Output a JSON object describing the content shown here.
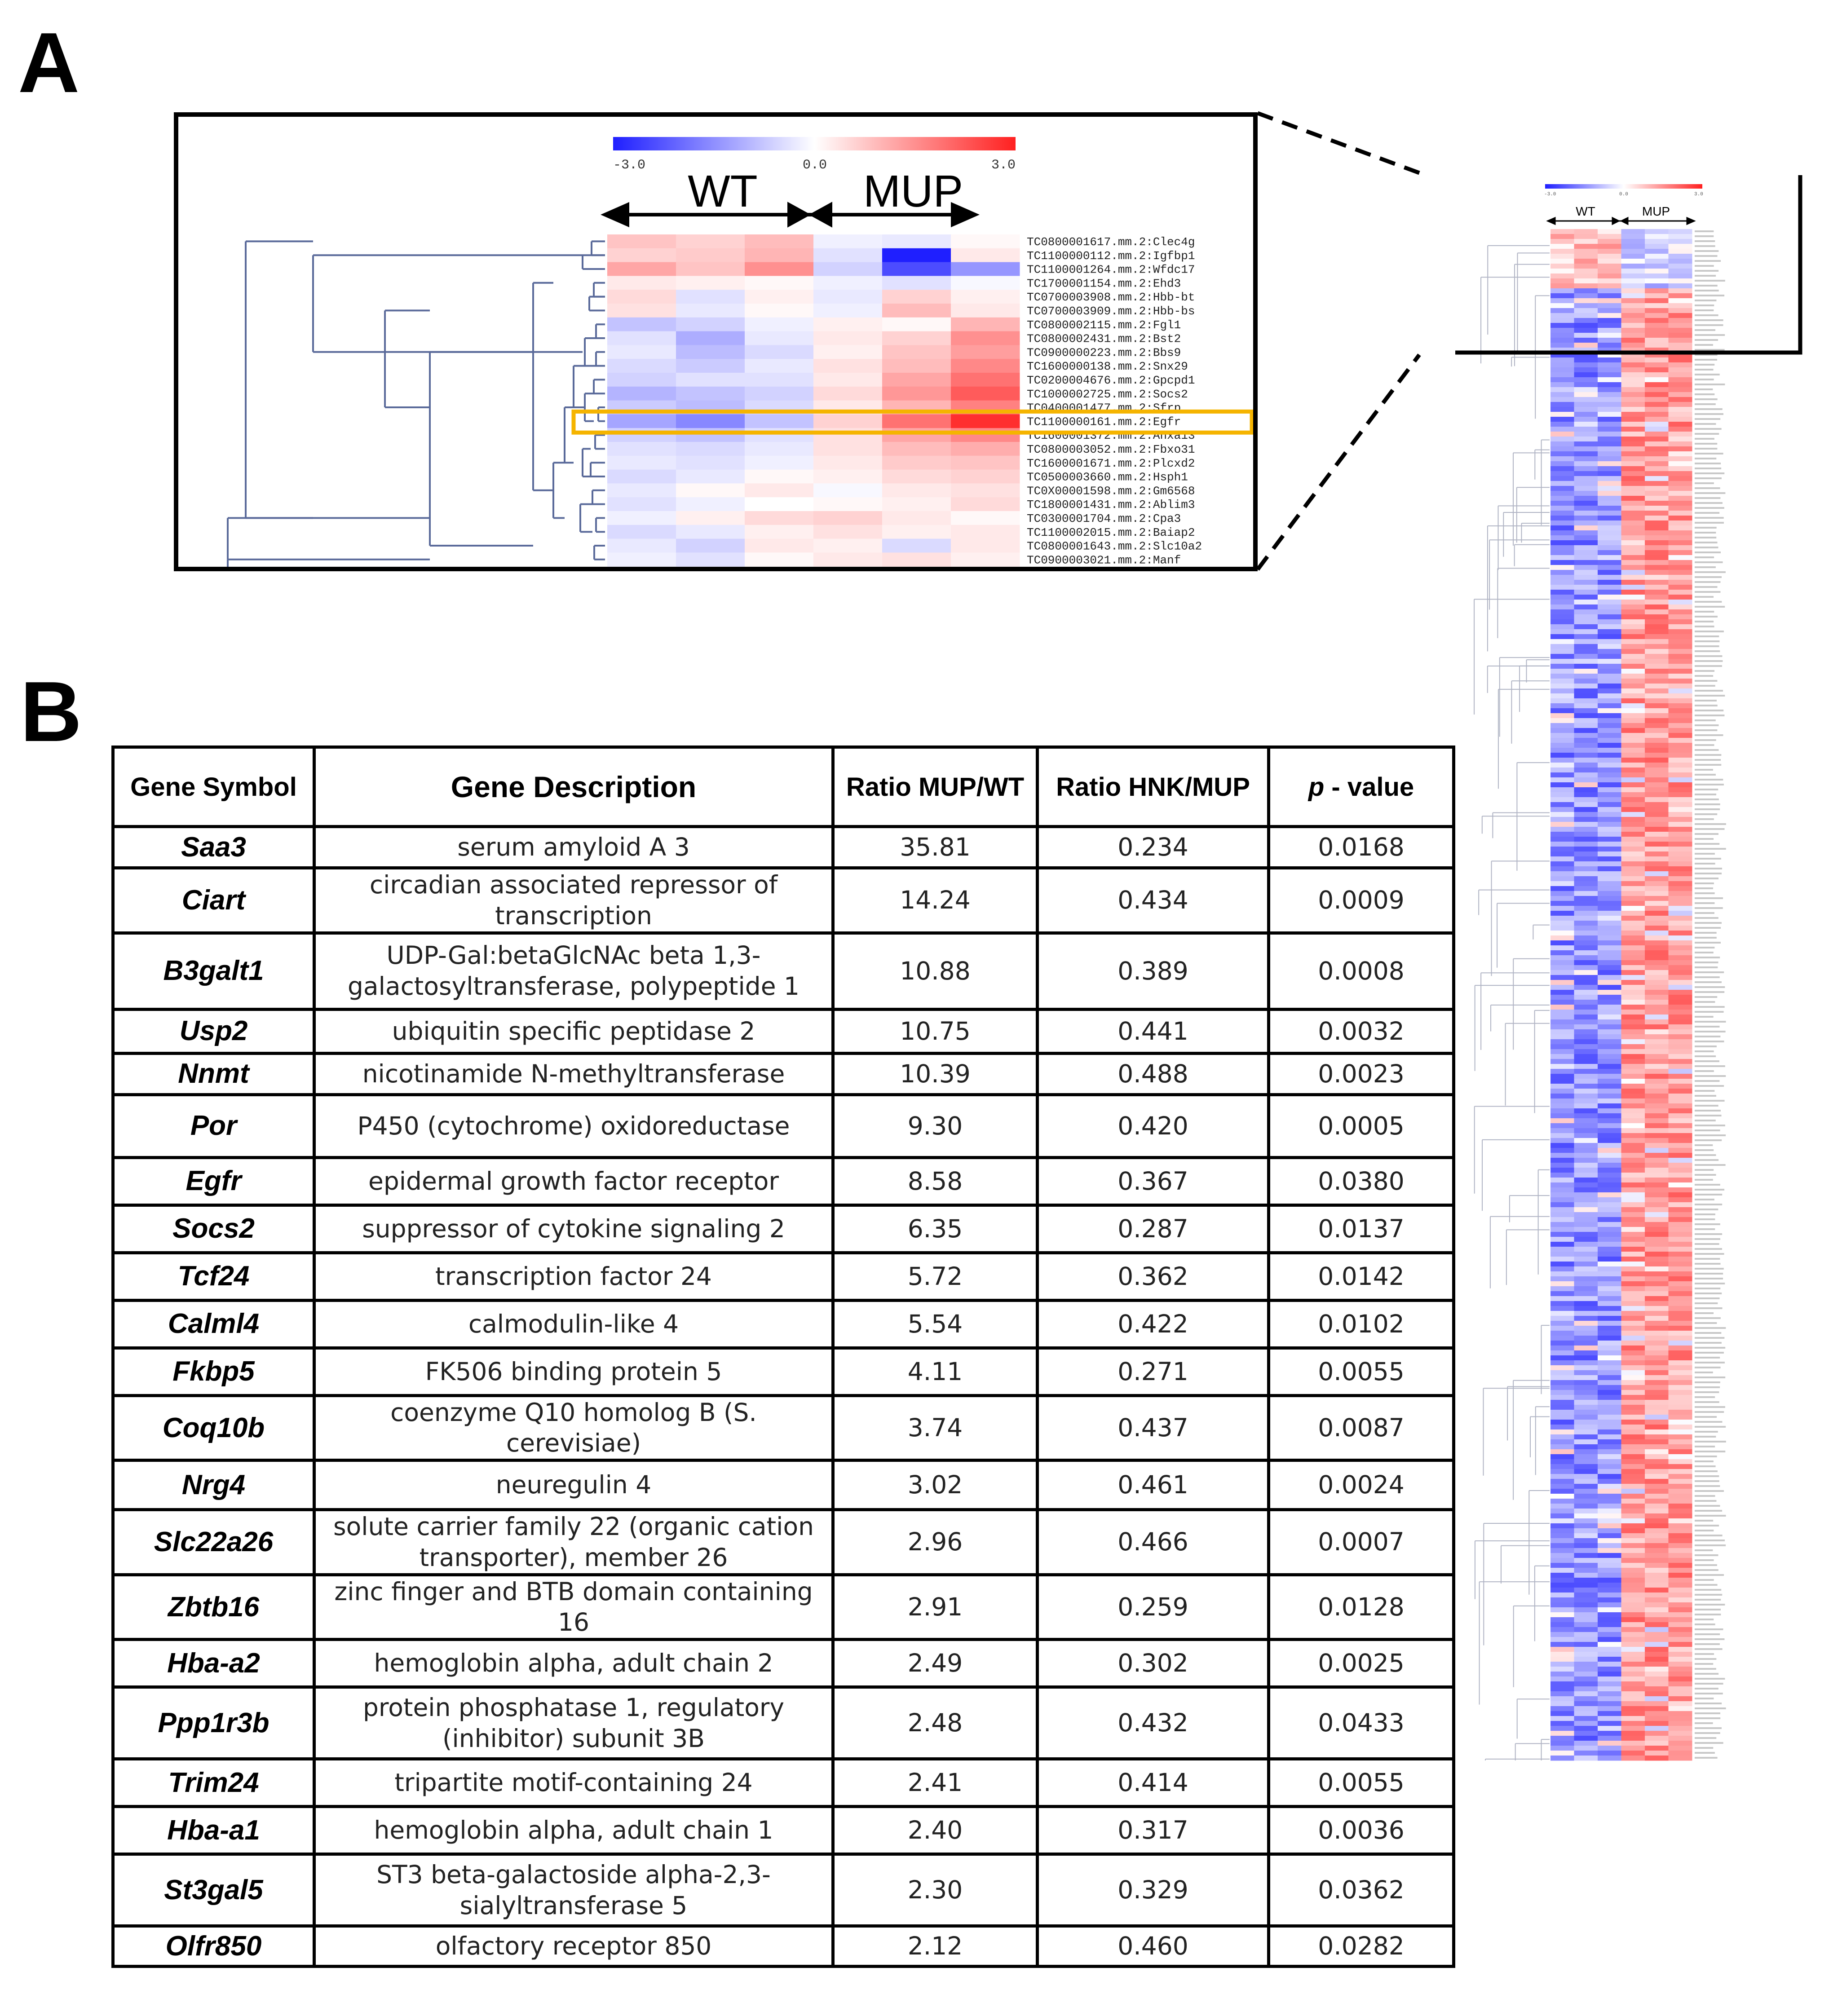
{
  "panel_a": {
    "letter": "A",
    "zoom": {
      "scale": {
        "min_label": "-3.0",
        "mid_label": "0.0",
        "max_label": "3.0",
        "low_color": "#1f1fff",
        "mid_color": "#ffffff",
        "high_color": "#ff2020"
      },
      "group_wt": "WT",
      "group_mup": "MUP",
      "highlight_color": "#f5b400",
      "rows": [
        {
          "label": "TC0800001617.mm.2:Clec4g",
          "values": [
            0.8,
            0.6,
            0.9,
            -0.2,
            -0.3,
            0.1
          ]
        },
        {
          "label": "TC1100000112.mm.2:Igfbp1",
          "values": [
            0.6,
            0.7,
            1.0,
            -0.4,
            -3.0,
            0.3
          ]
        },
        {
          "label": "TC1100001264.mm.2:Wfdc17",
          "values": [
            1.2,
            0.8,
            1.5,
            -0.6,
            -2.4,
            -1.4
          ]
        },
        {
          "label": "TC1700001154.mm.2:Ehd3",
          "values": [
            0.3,
            0.2,
            0.1,
            -0.2,
            -0.4,
            -0.1
          ]
        },
        {
          "label": "TC0700003908.mm.2:Hbb-bt",
          "values": [
            0.5,
            -0.4,
            0.2,
            -0.3,
            0.6,
            0.2
          ]
        },
        {
          "label": "TC0700003909.mm.2:Hbb-bs",
          "values": [
            0.4,
            -0.3,
            0.1,
            -0.2,
            0.9,
            0.3
          ]
        },
        {
          "label": "TC0800002115.mm.2:Fgl1",
          "values": [
            -0.8,
            -0.6,
            -0.2,
            0.2,
            0.1,
            1.0
          ]
        },
        {
          "label": "TC0800002431.mm.2:Bst2",
          "values": [
            -0.4,
            -1.1,
            -0.3,
            0.3,
            0.6,
            1.5
          ]
        },
        {
          "label": "TC0900000223.mm.2:Bbs9",
          "values": [
            -0.3,
            -0.9,
            -0.5,
            0.2,
            0.8,
            1.3
          ]
        },
        {
          "label": "TC1600000138.mm.2:Snx29",
          "values": [
            -0.5,
            -0.7,
            -0.3,
            0.4,
            0.9,
            1.6
          ]
        },
        {
          "label": "TC0200004676.mm.2:Gpcpd1",
          "values": [
            -0.6,
            -0.4,
            -0.4,
            0.3,
            1.2,
            1.9
          ]
        },
        {
          "label": "TC1000002725.mm.2:Socs2",
          "values": [
            -1.0,
            -0.8,
            -0.6,
            0.5,
            1.4,
            2.2
          ]
        },
        {
          "label": "TC0400001477.mm.2:Sfrp",
          "values": [
            -0.7,
            -0.9,
            -0.5,
            0.3,
            1.0,
            1.7
          ]
        },
        {
          "label": "TC1100000161.mm.2:Egfr",
          "values": [
            -1.2,
            -1.6,
            -0.8,
            0.6,
            1.9,
            2.8
          ]
        },
        {
          "label": "TC1600001372.mm.2:Anxa13",
          "values": [
            -0.6,
            -0.8,
            -0.4,
            0.4,
            1.2,
            1.6
          ]
        },
        {
          "label": "TC0800003052.mm.2:Fbxo31",
          "values": [
            -0.4,
            -0.5,
            -0.3,
            0.4,
            0.9,
            1.1
          ]
        },
        {
          "label": "TC1600001671.mm.2:Plcxd2",
          "values": [
            -0.3,
            -0.4,
            -0.2,
            0.3,
            0.7,
            0.8
          ]
        },
        {
          "label": "TC0500003660.mm.2:Hsph1",
          "values": [
            -0.5,
            -0.3,
            0.1,
            0.2,
            0.5,
            0.6
          ]
        },
        {
          "label": "TC0X00001598.mm.2:Gm6568",
          "values": [
            -0.3,
            0.1,
            0.3,
            -0.1,
            0.3,
            0.4
          ]
        },
        {
          "label": "TC1800001431.mm.2:Ablim3",
          "values": [
            -0.4,
            -0.2,
            0.0,
            0.1,
            0.2,
            0.5
          ]
        },
        {
          "label": "TC0300001704.mm.2:Cpa3",
          "values": [
            -0.2,
            0.2,
            0.5,
            0.6,
            0.3,
            0.1
          ]
        },
        {
          "label": "TC1100002015.mm.2:Baiap2",
          "values": [
            -0.5,
            -0.3,
            0.2,
            0.4,
            0.2,
            0.3
          ]
        },
        {
          "label": "TC0800001643.mm.2:Slc10a2",
          "values": [
            -0.3,
            -0.6,
            0.3,
            0.2,
            -0.5,
            0.3
          ]
        },
        {
          "label": "TC0900003021.mm.2:Manf",
          "values": [
            -0.2,
            -0.4,
            0.1,
            0.3,
            0.4,
            0.2
          ]
        }
      ]
    },
    "overview": {
      "scale": {
        "min_label": "-3.0",
        "mid_label": "0.0",
        "max_label": "3.0"
      },
      "group_wt": "WT",
      "group_mup": "MUP"
    }
  },
  "panel_b": {
    "letter": "B",
    "headers": {
      "symbol": "Gene Symbol",
      "description": "Gene Description",
      "ratio_mup_wt": "Ratio MUP/WT",
      "ratio_hnk_mup": "Ratio HNK/MUP",
      "p_prefix": "p",
      "p_suffix": " - value"
    },
    "rows": [
      {
        "symbol": "Saa3",
        "description": "serum amyloid A 3",
        "ratio_mup_wt": "35.81",
        "ratio_hnk_mup": "0.234",
        "p": "0.0168"
      },
      {
        "symbol": "Ciart",
        "description": "circadian associated repressor of transcription",
        "ratio_mup_wt": "14.24",
        "ratio_hnk_mup": "0.434",
        "p": "0.0009"
      },
      {
        "symbol": "B3galt1",
        "description": "UDP-Gal:betaGlcNAc beta 1,3-galactosyltransferase, polypeptide 1",
        "ratio_mup_wt": "10.88",
        "ratio_hnk_mup": "0.389",
        "p": "0.0008"
      },
      {
        "symbol": "Usp2",
        "description": "ubiquitin specific peptidase 2",
        "ratio_mup_wt": "10.75",
        "ratio_hnk_mup": "0.441",
        "p": "0.0032"
      },
      {
        "symbol": "Nnmt",
        "description": "nicotinamide N-methyltransferase",
        "ratio_mup_wt": "10.39",
        "ratio_hnk_mup": "0.488",
        "p": "0.0023"
      },
      {
        "symbol": "Por",
        "description": "P450 (cytochrome) oxidoreductase",
        "ratio_mup_wt": "9.30",
        "ratio_hnk_mup": "0.420",
        "p": "0.0005"
      },
      {
        "symbol": "Egfr",
        "description": "epidermal growth factor receptor",
        "ratio_mup_wt": "8.58",
        "ratio_hnk_mup": "0.367",
        "p": "0.0380"
      },
      {
        "symbol": "Socs2",
        "description": "suppressor of cytokine signaling 2",
        "ratio_mup_wt": "6.35",
        "ratio_hnk_mup": "0.287",
        "p": "0.0137"
      },
      {
        "symbol": "Tcf24",
        "description": "transcription factor 24",
        "ratio_mup_wt": "5.72",
        "ratio_hnk_mup": "0.362",
        "p": "0.0142"
      },
      {
        "symbol": "Calml4",
        "description": "calmodulin-like 4",
        "ratio_mup_wt": "5.54",
        "ratio_hnk_mup": "0.422",
        "p": "0.0102"
      },
      {
        "symbol": "Fkbp5",
        "description": "FK506 binding protein 5",
        "ratio_mup_wt": "4.11",
        "ratio_hnk_mup": "0.271",
        "p": "0.0055"
      },
      {
        "symbol": "Coq10b",
        "description": "coenzyme Q10 homolog B (S. cerevisiae)",
        "ratio_mup_wt": "3.74",
        "ratio_hnk_mup": "0.437",
        "p": "0.0087"
      },
      {
        "symbol": "Nrg4",
        "description": "neuregulin 4",
        "ratio_mup_wt": "3.02",
        "ratio_hnk_mup": "0.461",
        "p": "0.0024"
      },
      {
        "symbol": "Slc22a26",
        "description": "solute carrier family 22 (organic cation transporter), member 26",
        "ratio_mup_wt": "2.96",
        "ratio_hnk_mup": "0.466",
        "p": "0.0007"
      },
      {
        "symbol": "Zbtb16",
        "description": "zinc finger and BTB domain containing 16",
        "ratio_mup_wt": "2.91",
        "ratio_hnk_mup": "0.259",
        "p": "0.0128"
      },
      {
        "symbol": "Hba-a2",
        "description": "hemoglobin alpha, adult chain 2",
        "ratio_mup_wt": "2.49",
        "ratio_hnk_mup": "0.302",
        "p": "0.0025"
      },
      {
        "symbol": "Ppp1r3b",
        "description": "protein phosphatase 1, regulatory (inhibitor) subunit 3B",
        "ratio_mup_wt": "2.48",
        "ratio_hnk_mup": "0.432",
        "p": "0.0433"
      },
      {
        "symbol": "Trim24",
        "description": "tripartite motif-containing 24",
        "ratio_mup_wt": "2.41",
        "ratio_hnk_mup": "0.414",
        "p": "0.0055"
      },
      {
        "symbol": "Hba-a1",
        "description": "hemoglobin alpha, adult chain 1",
        "ratio_mup_wt": "2.40",
        "ratio_hnk_mup": "0.317",
        "p": "0.0036"
      },
      {
        "symbol": "St3gal5",
        "description": "ST3 beta-galactoside alpha-2,3-sialyltransferase 5",
        "ratio_mup_wt": "2.30",
        "ratio_hnk_mup": "0.329",
        "p": "0.0362"
      },
      {
        "symbol": "Olfr850",
        "description": "olfactory receptor 850",
        "ratio_mup_wt": "2.12",
        "ratio_hnk_mup": "0.460",
        "p": "0.0282"
      }
    ]
  }
}
